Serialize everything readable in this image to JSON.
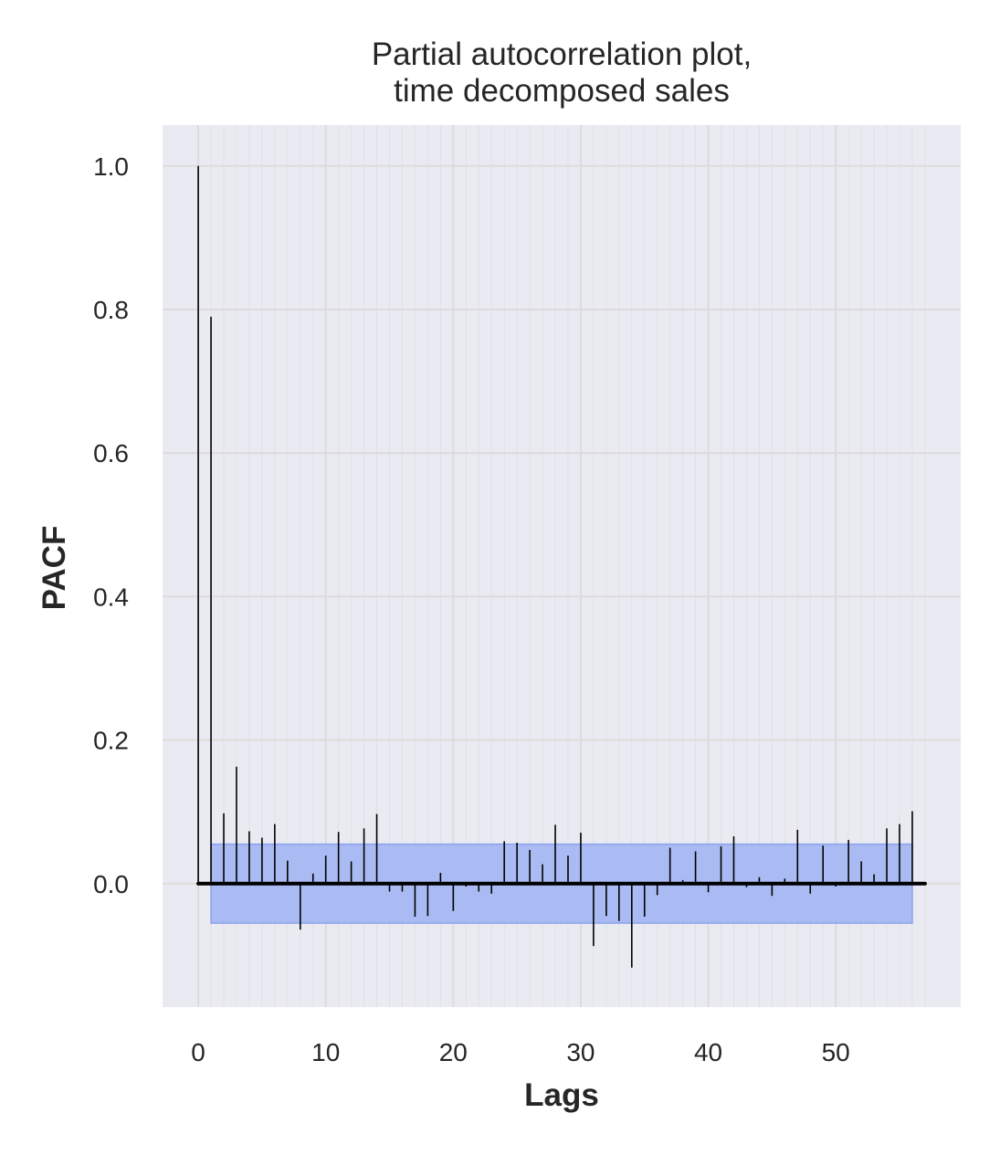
{
  "chart_data": {
    "type": "bar",
    "title_lines": [
      "Partial autocorrelation plot,",
      "time decomposed sales"
    ],
    "xlabel": "Lags",
    "ylabel": "PACF",
    "x": [
      0,
      1,
      2,
      3,
      4,
      5,
      6,
      7,
      8,
      9,
      10,
      11,
      12,
      13,
      14,
      15,
      16,
      17,
      18,
      19,
      20,
      21,
      22,
      23,
      24,
      25,
      26,
      27,
      28,
      29,
      30,
      31,
      32,
      33,
      34,
      35,
      36,
      37,
      38,
      39,
      40,
      41,
      42,
      43,
      44,
      45,
      46,
      47,
      48,
      49,
      50,
      51,
      52,
      53,
      54,
      55,
      56
    ],
    "values": [
      1.0,
      0.79,
      0.098,
      0.163,
      0.073,
      0.064,
      0.083,
      0.032,
      -0.064,
      0.014,
      0.039,
      0.072,
      0.031,
      0.077,
      0.097,
      -0.011,
      -0.011,
      -0.046,
      -0.045,
      0.015,
      -0.038,
      -0.004,
      -0.011,
      -0.014,
      0.059,
      0.057,
      0.047,
      0.027,
      0.082,
      0.039,
      0.071,
      -0.087,
      -0.045,
      -0.052,
      -0.117,
      -0.046,
      -0.016,
      0.05,
      0.005,
      0.045,
      -0.012,
      0.052,
      0.066,
      -0.005,
      0.009,
      -0.017,
      0.007,
      0.075,
      -0.014,
      0.053,
      -0.004,
      0.061,
      0.031,
      0.013,
      0.077,
      0.083,
      0.101
    ],
    "confidence_band": {
      "x_range": [
        1,
        56
      ],
      "upper": 0.055,
      "lower": -0.055
    },
    "xlim": [
      -2.8,
      59.8
    ],
    "ylim": [
      -0.172,
      1.057
    ],
    "xticks": [
      0,
      10,
      20,
      30,
      40,
      50
    ],
    "yticks": [
      0.0,
      0.2,
      0.4,
      0.6,
      0.8,
      1.0
    ],
    "ytick_labels": [
      "0.0",
      "0.2",
      "0.4",
      "0.6",
      "0.8",
      "1.0"
    ],
    "grid": true,
    "colors": {
      "plot_background": "#eaeaf2",
      "grid": "#dcdcdc",
      "stem": "#000000",
      "confidence_fill": "#a9bbf2",
      "confidence_edge": "#8aa2ee"
    }
  }
}
